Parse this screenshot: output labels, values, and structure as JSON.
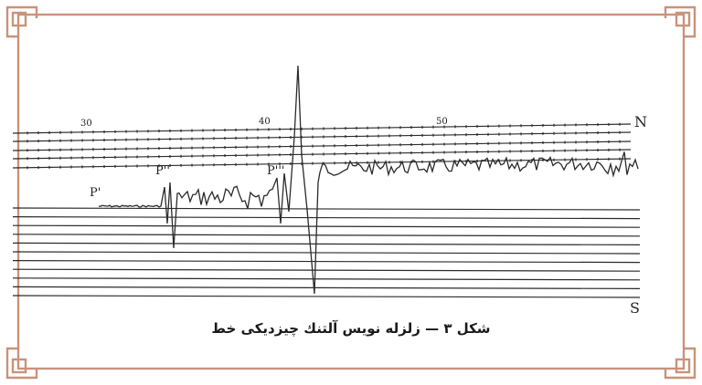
{
  "colors": {
    "frame": "#c9937a",
    "ink": "#2b2b2b",
    "paper": "#ffffff"
  },
  "figure": {
    "time_marks": [
      "30",
      "40",
      "50"
    ],
    "direction_top": "N",
    "direction_bottom": "S",
    "phases": [
      "P'",
      "P''",
      "P'''"
    ],
    "caption": "شکل ۳ — زلزله نویس آلتنك چیزدیکی خط"
  }
}
